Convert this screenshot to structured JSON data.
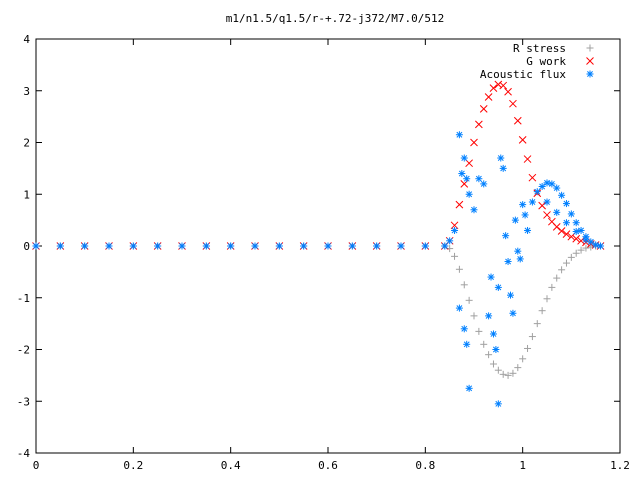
{
  "chart_data": {
    "type": "scatter",
    "title": "m1/n1.5/q1.5/r-+.72-j372/M7.0/512",
    "xlabel": "",
    "ylabel": "",
    "xlim": [
      0,
      1.2
    ],
    "ylim": [
      -4,
      4
    ],
    "xticks": [
      "0",
      "0.2",
      "0.4",
      "0.6",
      "0.8",
      "1",
      "1.2"
    ],
    "yticks": [
      "4",
      "3",
      "2",
      "1",
      "0",
      "-1",
      "-2",
      "-3",
      "-4"
    ],
    "grid": false,
    "legend_position": "top-right",
    "series": [
      {
        "name": "R stress",
        "marker": "plus",
        "color": "#a0a0a0",
        "points": [
          [
            0.0,
            0
          ],
          [
            0.05,
            0
          ],
          [
            0.1,
            0
          ],
          [
            0.15,
            0
          ],
          [
            0.2,
            0
          ],
          [
            0.25,
            0
          ],
          [
            0.3,
            0
          ],
          [
            0.35,
            0
          ],
          [
            0.4,
            0
          ],
          [
            0.45,
            0
          ],
          [
            0.5,
            0
          ],
          [
            0.55,
            0
          ],
          [
            0.6,
            0
          ],
          [
            0.65,
            0
          ],
          [
            0.7,
            0
          ],
          [
            0.75,
            0
          ],
          [
            0.8,
            0
          ],
          [
            0.84,
            0
          ],
          [
            0.85,
            -0.05
          ],
          [
            0.86,
            -0.2
          ],
          [
            0.87,
            -0.45
          ],
          [
            0.88,
            -0.75
          ],
          [
            0.89,
            -1.05
          ],
          [
            0.9,
            -1.35
          ],
          [
            0.91,
            -1.65
          ],
          [
            0.92,
            -1.9
          ],
          [
            0.93,
            -2.1
          ],
          [
            0.94,
            -2.28
          ],
          [
            0.95,
            -2.4
          ],
          [
            0.96,
            -2.48
          ],
          [
            0.97,
            -2.5
          ],
          [
            0.98,
            -2.46
          ],
          [
            0.99,
            -2.35
          ],
          [
            1.0,
            -2.18
          ],
          [
            1.01,
            -1.98
          ],
          [
            1.02,
            -1.75
          ],
          [
            1.03,
            -1.5
          ],
          [
            1.04,
            -1.25
          ],
          [
            1.05,
            -1.02
          ],
          [
            1.06,
            -0.8
          ],
          [
            1.07,
            -0.62
          ],
          [
            1.08,
            -0.46
          ],
          [
            1.09,
            -0.33
          ],
          [
            1.1,
            -0.22
          ],
          [
            1.11,
            -0.14
          ],
          [
            1.12,
            -0.08
          ],
          [
            1.13,
            -0.04
          ],
          [
            1.14,
            -0.02
          ],
          [
            1.15,
            0
          ],
          [
            1.16,
            0
          ]
        ]
      },
      {
        "name": "G work",
        "marker": "cross",
        "color": "#ff0000",
        "points": [
          [
            0.0,
            0
          ],
          [
            0.05,
            0
          ],
          [
            0.1,
            0
          ],
          [
            0.15,
            0
          ],
          [
            0.2,
            0
          ],
          [
            0.25,
            0
          ],
          [
            0.3,
            0
          ],
          [
            0.35,
            0
          ],
          [
            0.4,
            0
          ],
          [
            0.45,
            0
          ],
          [
            0.5,
            0
          ],
          [
            0.55,
            0
          ],
          [
            0.6,
            0
          ],
          [
            0.65,
            0
          ],
          [
            0.7,
            0
          ],
          [
            0.75,
            0
          ],
          [
            0.8,
            0
          ],
          [
            0.84,
            0
          ],
          [
            0.85,
            0.1
          ],
          [
            0.86,
            0.4
          ],
          [
            0.87,
            0.8
          ],
          [
            0.88,
            1.2
          ],
          [
            0.89,
            1.6
          ],
          [
            0.9,
            2.0
          ],
          [
            0.91,
            2.35
          ],
          [
            0.92,
            2.65
          ],
          [
            0.93,
            2.88
          ],
          [
            0.94,
            3.05
          ],
          [
            0.95,
            3.12
          ],
          [
            0.96,
            3.1
          ],
          [
            0.97,
            2.98
          ],
          [
            0.98,
            2.75
          ],
          [
            0.99,
            2.42
          ],
          [
            1.0,
            2.05
          ],
          [
            1.01,
            1.68
          ],
          [
            1.02,
            1.32
          ],
          [
            1.03,
            1.02
          ],
          [
            1.04,
            0.78
          ],
          [
            1.05,
            0.6
          ],
          [
            1.06,
            0.47
          ],
          [
            1.07,
            0.37
          ],
          [
            1.08,
            0.29
          ],
          [
            1.09,
            0.23
          ],
          [
            1.1,
            0.18
          ],
          [
            1.11,
            0.14
          ],
          [
            1.12,
            0.1
          ],
          [
            1.13,
            0.07
          ],
          [
            1.14,
            0.04
          ],
          [
            1.15,
            0.02
          ],
          [
            1.16,
            0
          ]
        ]
      },
      {
        "name": "Acoustic flux",
        "marker": "star",
        "color": "#0080ff",
        "points": [
          [
            0.0,
            0
          ],
          [
            0.05,
            0
          ],
          [
            0.1,
            0
          ],
          [
            0.15,
            0
          ],
          [
            0.2,
            0
          ],
          [
            0.25,
            0
          ],
          [
            0.3,
            0
          ],
          [
            0.35,
            0
          ],
          [
            0.4,
            0
          ],
          [
            0.45,
            0
          ],
          [
            0.5,
            0
          ],
          [
            0.55,
            0
          ],
          [
            0.6,
            0
          ],
          [
            0.65,
            0
          ],
          [
            0.7,
            0
          ],
          [
            0.75,
            0
          ],
          [
            0.8,
            0
          ],
          [
            0.84,
            0
          ],
          [
            0.85,
            0.1
          ],
          [
            0.86,
            0.3
          ],
          [
            0.87,
            2.15
          ],
          [
            0.88,
            1.7
          ],
          [
            0.875,
            1.4
          ],
          [
            0.885,
            1.3
          ],
          [
            0.89,
            1.0
          ],
          [
            0.87,
            -1.2
          ],
          [
            0.88,
            -1.6
          ],
          [
            0.885,
            -1.9
          ],
          [
            0.89,
            -2.75
          ],
          [
            0.9,
            0.7
          ],
          [
            0.91,
            1.3
          ],
          [
            0.92,
            1.2
          ],
          [
            0.93,
            -1.35
          ],
          [
            0.935,
            -0.6
          ],
          [
            0.94,
            -1.7
          ],
          [
            0.945,
            -2.0
          ],
          [
            0.95,
            -0.8
          ],
          [
            0.955,
            1.7
          ],
          [
            0.96,
            1.5
          ],
          [
            0.965,
            0.2
          ],
          [
            0.97,
            -0.3
          ],
          [
            0.975,
            -0.95
          ],
          [
            0.98,
            -1.3
          ],
          [
            0.985,
            0.5
          ],
          [
            0.99,
            -0.1
          ],
          [
            0.995,
            -0.25
          ],
          [
            1.0,
            0.8
          ],
          [
            1.005,
            0.6
          ],
          [
            1.01,
            0.3
          ],
          [
            0.95,
            -3.05
          ],
          [
            1.02,
            0.85
          ],
          [
            1.03,
            1.05
          ],
          [
            1.04,
            1.15
          ],
          [
            1.05,
            1.22
          ],
          [
            1.06,
            1.2
          ],
          [
            1.07,
            1.12
          ],
          [
            1.08,
            0.98
          ],
          [
            1.09,
            0.82
          ],
          [
            1.1,
            0.62
          ],
          [
            1.11,
            0.45
          ],
          [
            1.12,
            0.3
          ],
          [
            1.13,
            0.18
          ],
          [
            1.14,
            0.08
          ],
          [
            1.15,
            0.02
          ],
          [
            1.16,
            0
          ],
          [
            1.05,
            0.85
          ],
          [
            1.07,
            0.65
          ],
          [
            1.09,
            0.45
          ],
          [
            1.11,
            0.28
          ],
          [
            1.13,
            0.12
          ]
        ]
      }
    ]
  }
}
